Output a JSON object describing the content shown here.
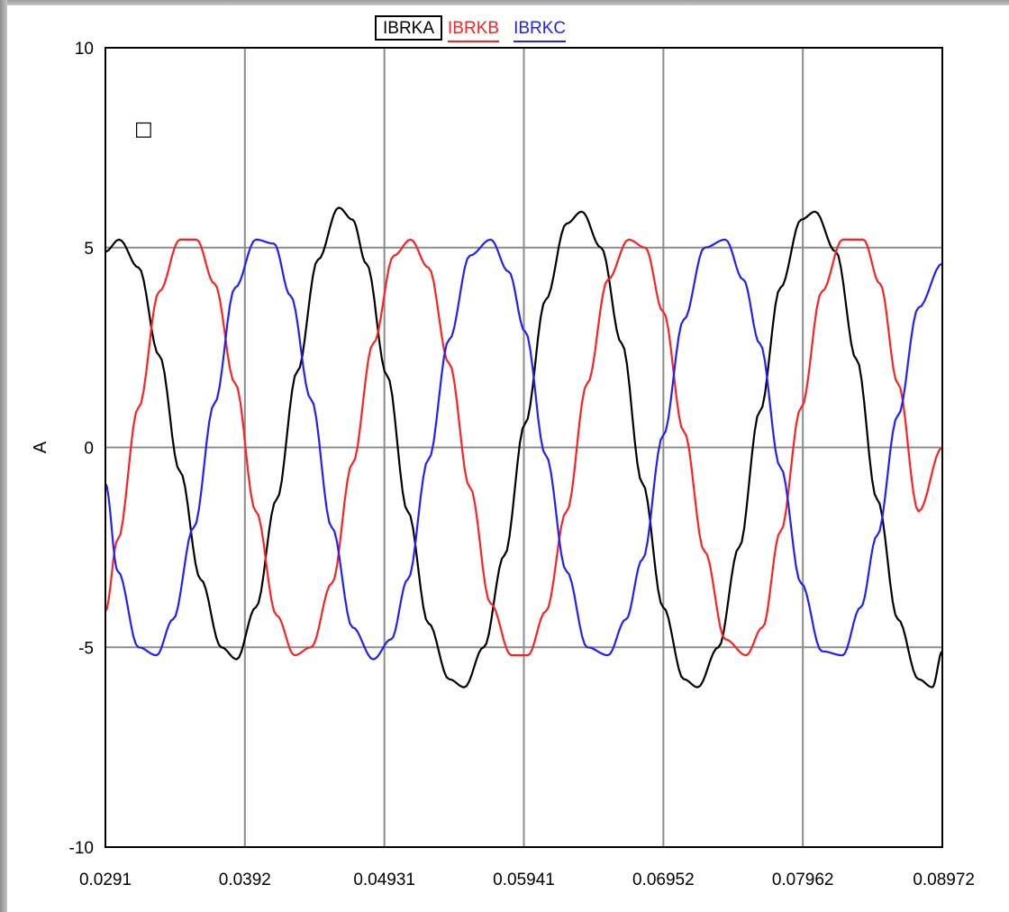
{
  "chart_data": {
    "type": "line",
    "title": "",
    "xlabel": "",
    "ylabel": "A",
    "xlim": [
      0.0291,
      0.08972
    ],
    "ylim": [
      -10,
      10
    ],
    "x_ticks": [
      "0.0291",
      "0.0392",
      "0.04931",
      "0.05941",
      "0.06952",
      "0.07962",
      "0.08972"
    ],
    "y_ticks": [
      "10",
      "5",
      "0",
      "-5",
      "-10"
    ],
    "grid": true,
    "legend_position": "top-center",
    "frequency_hz": 60,
    "series": [
      {
        "name": "IBRKA",
        "color": "#000000",
        "x": [
          0.0291,
          0.0301,
          0.0315,
          0.033,
          0.0345,
          0.036,
          0.0375,
          0.0386,
          0.04,
          0.0415,
          0.043,
          0.0445,
          0.046,
          0.047,
          0.048,
          0.0495,
          0.051,
          0.0525,
          0.054,
          0.0551,
          0.0565,
          0.058,
          0.0595,
          0.061,
          0.0625,
          0.0636,
          0.065,
          0.0665,
          0.068,
          0.0695,
          0.071,
          0.072,
          0.0735,
          0.075,
          0.0765,
          0.078,
          0.0795,
          0.0805,
          0.082,
          0.0835,
          0.085,
          0.0865,
          0.088,
          0.089,
          0.08972
        ],
        "y": [
          4.9,
          5.2,
          4.5,
          2.3,
          -0.6,
          -3.3,
          -5.0,
          -5.3,
          -4.0,
          -1.3,
          1.9,
          4.7,
          6.0,
          5.7,
          4.6,
          1.8,
          -1.6,
          -4.4,
          -5.8,
          -6.0,
          -5.0,
          -2.7,
          0.6,
          3.7,
          5.6,
          5.9,
          5.0,
          2.6,
          -0.9,
          -4.0,
          -5.8,
          -6.0,
          -5.0,
          -2.5,
          0.9,
          4.0,
          5.7,
          5.9,
          4.9,
          2.2,
          -1.3,
          -4.3,
          -5.8,
          -6.0,
          -5.1
        ]
      },
      {
        "name": "IBRKB",
        "color": "#ff2020",
        "x": [
          0.0291,
          0.03,
          0.0315,
          0.033,
          0.0345,
          0.0357,
          0.037,
          0.0385,
          0.04,
          0.0415,
          0.0428,
          0.044,
          0.0455,
          0.047,
          0.0485,
          0.05,
          0.0512,
          0.0525,
          0.054,
          0.0555,
          0.057,
          0.0585,
          0.0597,
          0.061,
          0.0625,
          0.064,
          0.0655,
          0.067,
          0.0682,
          0.0695,
          0.071,
          0.0725,
          0.074,
          0.0755,
          0.0767,
          0.078,
          0.0795,
          0.081,
          0.0825,
          0.084,
          0.0852,
          0.0865,
          0.088,
          0.08972
        ],
        "y": [
          -4.1,
          -2.3,
          1.0,
          3.9,
          5.2,
          5.2,
          4.1,
          1.6,
          -1.6,
          -4.2,
          -5.2,
          -5.0,
          -3.4,
          -0.4,
          2.6,
          4.8,
          5.2,
          4.5,
          2.1,
          -1.0,
          -3.9,
          -5.2,
          -5.2,
          -4.1,
          -1.6,
          1.6,
          4.2,
          5.2,
          5.0,
          3.4,
          0.4,
          -2.6,
          -4.8,
          -5.2,
          -4.5,
          -2.1,
          1.0,
          3.9,
          5.2,
          5.2,
          4.1,
          1.6,
          -1.6,
          0.0
        ]
      },
      {
        "name": "IBRKC",
        "color": "#2020ff",
        "x": [
          0.0291,
          0.03,
          0.0315,
          0.0328,
          0.034,
          0.0355,
          0.037,
          0.0385,
          0.04,
          0.0413,
          0.0425,
          0.044,
          0.0455,
          0.047,
          0.0485,
          0.0498,
          0.051,
          0.0525,
          0.054,
          0.0555,
          0.057,
          0.0583,
          0.0595,
          0.061,
          0.0625,
          0.064,
          0.0655,
          0.0668,
          0.068,
          0.0695,
          0.071,
          0.0725,
          0.074,
          0.0753,
          0.0765,
          0.078,
          0.0795,
          0.081,
          0.0825,
          0.0838,
          0.085,
          0.0865,
          0.088,
          0.08972
        ],
        "y": [
          -0.9,
          -3.1,
          -5.0,
          -5.2,
          -4.3,
          -2.0,
          1.1,
          4.0,
          5.2,
          5.1,
          3.8,
          1.2,
          -2.0,
          -4.5,
          -5.3,
          -4.8,
          -3.3,
          -0.3,
          2.7,
          4.8,
          5.2,
          4.4,
          2.9,
          -0.2,
          -3.1,
          -5.0,
          -5.2,
          -4.3,
          -2.8,
          0.3,
          3.2,
          5.0,
          5.2,
          4.2,
          2.6,
          -0.5,
          -3.4,
          -5.1,
          -5.2,
          -4.0,
          -2.2,
          0.8,
          3.5,
          4.6
        ]
      }
    ]
  },
  "marker_symbol": "□"
}
